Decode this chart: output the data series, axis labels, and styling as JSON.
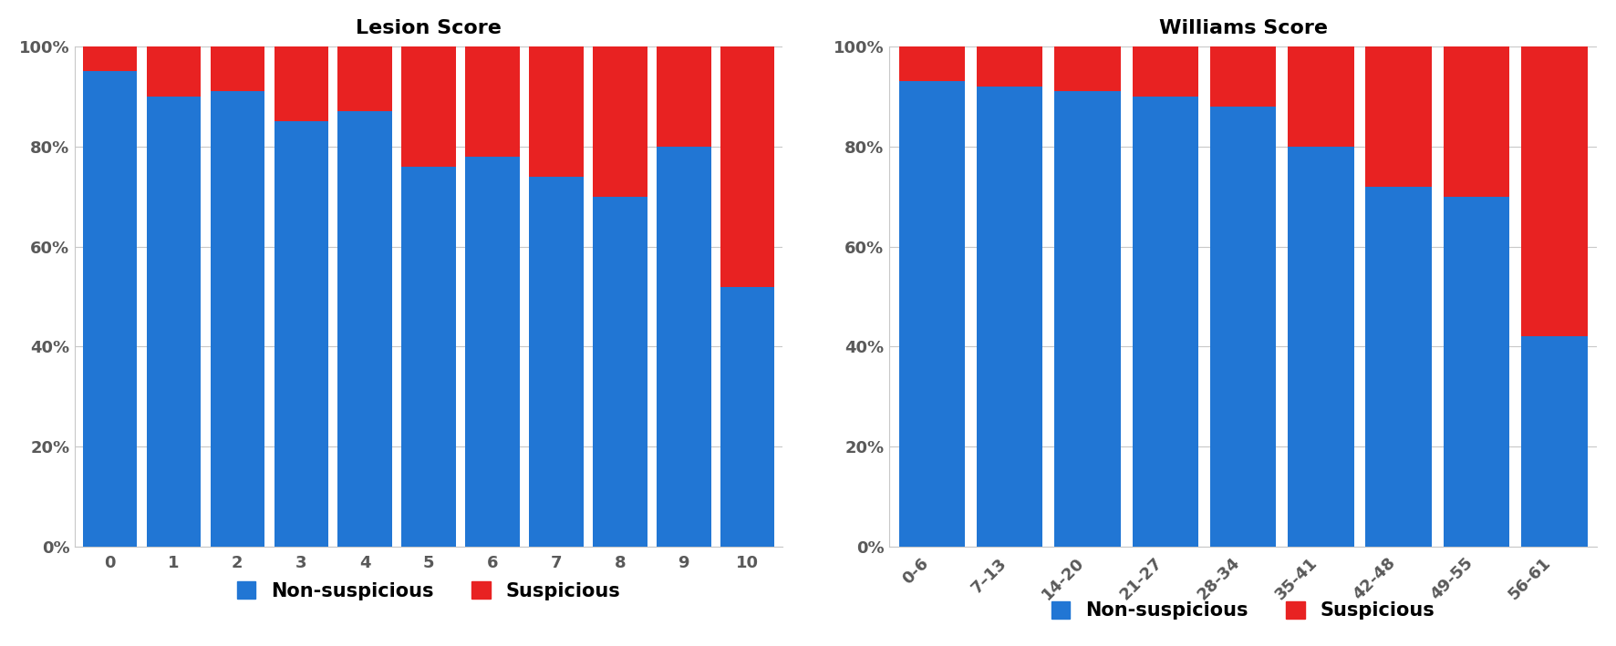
{
  "lesion": {
    "title": "Lesion Score",
    "categories": [
      "0",
      "1",
      "2",
      "3",
      "4",
      "5",
      "6",
      "7",
      "8",
      "9",
      "10"
    ],
    "non_suspicious": [
      0.95,
      0.9,
      0.91,
      0.85,
      0.87,
      0.76,
      0.78,
      0.74,
      0.7,
      0.8,
      0.52
    ],
    "suspicious": [
      0.05,
      0.1,
      0.09,
      0.15,
      0.13,
      0.24,
      0.22,
      0.26,
      0.3,
      0.2,
      0.48
    ]
  },
  "williams": {
    "title": "Williams Score",
    "categories": [
      "0-6",
      "7–13",
      "14-20",
      "21-27",
      "28-34",
      "35-41",
      "42-48",
      "49-55",
      "56-61"
    ],
    "non_suspicious": [
      0.93,
      0.92,
      0.91,
      0.9,
      0.88,
      0.8,
      0.72,
      0.7,
      0.42
    ],
    "suspicious": [
      0.07,
      0.08,
      0.09,
      0.1,
      0.12,
      0.2,
      0.28,
      0.3,
      0.58
    ]
  },
  "blue_color": "#2176D4",
  "red_color": "#E82222",
  "bg_color": "#FFFFFF",
  "text_color": "#595959",
  "grid_color": "#C8C8C8",
  "legend_non_suspicious": "Non-suspicious",
  "legend_suspicious": "Suspicious",
  "yticks": [
    0.0,
    0.2,
    0.4,
    0.6,
    0.8,
    1.0
  ],
  "ytick_labels": [
    "0%",
    "20%",
    "40%",
    "60%",
    "80%",
    "100%"
  ],
  "title_fontsize": 16,
  "tick_fontsize": 13,
  "legend_fontsize": 15,
  "bar_width": 0.85
}
